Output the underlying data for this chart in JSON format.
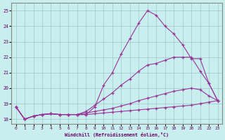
{
  "xlabel": "Windchill (Refroidissement éolien,°C)",
  "background_color": "#c8eeee",
  "grid_color": "#a0c8c8",
  "line_color": "#993399",
  "xlim": [
    -0.5,
    23.5
  ],
  "ylim": [
    17.7,
    25.5
  ],
  "xticks": [
    0,
    1,
    2,
    3,
    4,
    5,
    6,
    7,
    8,
    9,
    10,
    11,
    12,
    13,
    14,
    15,
    16,
    17,
    18,
    19,
    20,
    21,
    22,
    23
  ],
  "yticks": [
    18,
    19,
    20,
    21,
    22,
    23,
    24,
    25
  ],
  "line1_x": [
    0,
    1,
    2,
    3,
    4,
    5,
    6,
    7,
    8,
    9,
    10,
    11,
    12,
    13,
    14,
    15,
    16,
    17,
    18,
    19,
    20,
    21,
    22,
    23
  ],
  "line1_y": [
    18.8,
    18.0,
    18.2,
    18.3,
    18.35,
    18.3,
    18.3,
    18.3,
    18.3,
    18.8,
    20.2,
    21.0,
    22.2,
    23.2,
    24.2,
    25.0,
    24.7,
    24.0,
    23.5,
    22.8,
    21.9,
    21.9,
    20.3,
    19.2
  ],
  "line2_x": [
    0,
    1,
    2,
    3,
    4,
    5,
    6,
    7,
    8,
    9,
    10,
    11,
    12,
    13,
    14,
    15,
    16,
    17,
    18,
    19,
    20,
    21,
    22,
    23
  ],
  "line2_y": [
    18.8,
    18.0,
    18.2,
    18.3,
    18.35,
    18.3,
    18.3,
    18.3,
    18.5,
    18.9,
    19.3,
    19.7,
    20.2,
    20.6,
    21.1,
    21.5,
    21.6,
    21.8,
    22.0,
    22.0,
    22.0,
    21.1,
    20.3,
    19.2
  ],
  "line3_x": [
    0,
    1,
    2,
    3,
    4,
    5,
    6,
    7,
    8,
    9,
    10,
    11,
    12,
    13,
    14,
    15,
    16,
    17,
    18,
    19,
    20,
    21,
    22,
    23
  ],
  "line3_y": [
    18.8,
    18.0,
    18.2,
    18.3,
    18.35,
    18.3,
    18.3,
    18.3,
    18.4,
    18.5,
    18.6,
    18.7,
    18.85,
    19.0,
    19.2,
    19.35,
    19.5,
    19.65,
    19.8,
    19.9,
    20.0,
    19.9,
    19.5,
    19.2
  ],
  "line4_x": [
    0,
    1,
    2,
    3,
    4,
    5,
    6,
    7,
    8,
    9,
    10,
    11,
    12,
    13,
    14,
    15,
    16,
    17,
    18,
    19,
    20,
    21,
    22,
    23
  ],
  "line4_y": [
    18.8,
    18.0,
    18.2,
    18.3,
    18.35,
    18.3,
    18.3,
    18.3,
    18.3,
    18.35,
    18.4,
    18.45,
    18.5,
    18.55,
    18.6,
    18.65,
    18.7,
    18.75,
    18.8,
    18.85,
    18.9,
    19.0,
    19.1,
    19.2
  ]
}
